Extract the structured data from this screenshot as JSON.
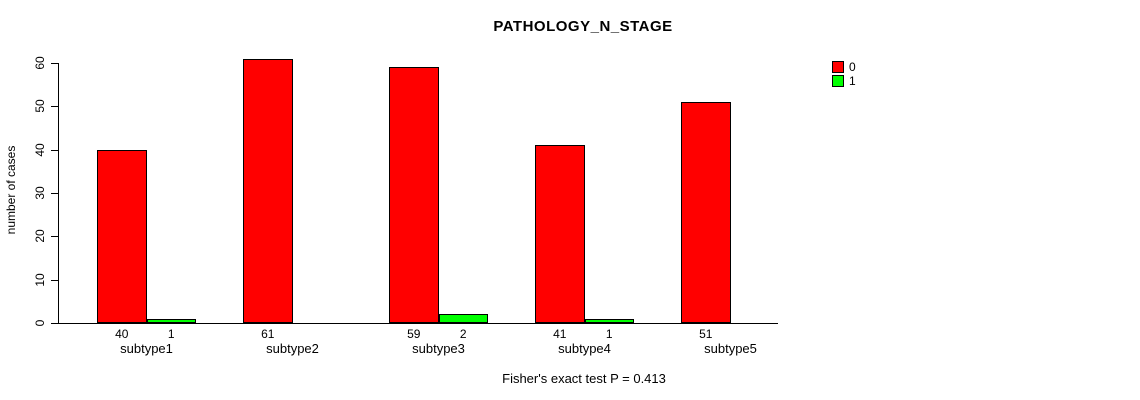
{
  "chart_data": {
    "type": "bar",
    "title": "PATHOLOGY_N_STAGE",
    "xlabel": "",
    "ylabel": "number of cases",
    "categories": [
      "subtype1",
      "subtype2",
      "subtype3",
      "subtype4",
      "subtype5"
    ],
    "series": [
      {
        "name": "0",
        "color": "#FF0000",
        "values": [
          40,
          61,
          59,
          41,
          51
        ]
      },
      {
        "name": "1",
        "color": "#00FF00",
        "values": [
          1,
          0,
          2,
          1,
          0
        ]
      }
    ],
    "bar_value_labels": [
      [
        "40",
        "1"
      ],
      [
        "61",
        ""
      ],
      [
        "59",
        "2"
      ],
      [
        "41",
        "1"
      ],
      [
        "51",
        ""
      ]
    ],
    "ylim": [
      0,
      60
    ],
    "yticks": [
      0,
      10,
      20,
      30,
      40,
      50,
      60
    ],
    "grid": false,
    "legend_position": "right-outside",
    "annotation": "Fisher's exact test P = 0.413"
  },
  "legend": {
    "items": [
      {
        "label": "0",
        "color": "#FF0000"
      },
      {
        "label": "1",
        "color": "#00FF00"
      }
    ]
  }
}
